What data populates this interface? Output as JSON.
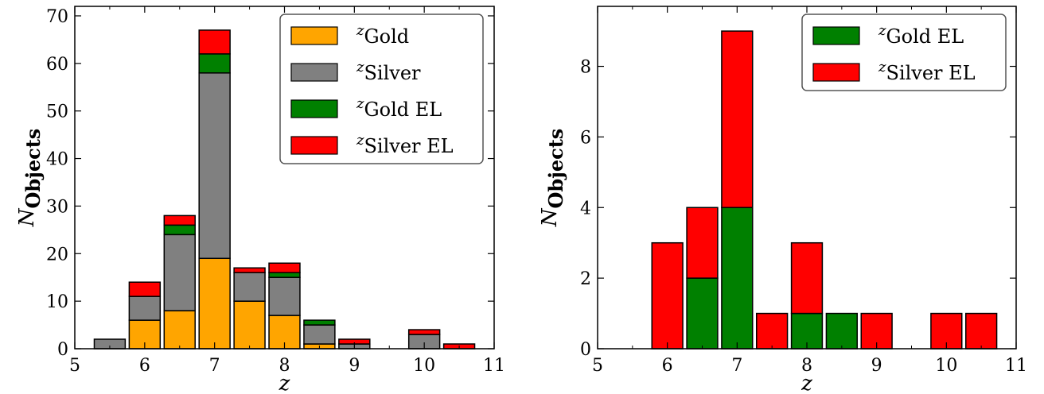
{
  "chart_data": [
    {
      "type": "bar",
      "stacked": true,
      "xlabel": "z",
      "ylabel": "N_Objects",
      "xlim": [
        5,
        11
      ],
      "ylim": [
        0,
        72
      ],
      "xticks": [
        5,
        6,
        7,
        8,
        9,
        10,
        11
      ],
      "yticks": [
        0,
        10,
        20,
        30,
        40,
        50,
        60,
        70
      ],
      "bin_edges": [
        5.25,
        5.75,
        6.25,
        6.75,
        7.25,
        7.75,
        8.25,
        8.75,
        9.25,
        9.75,
        10.25,
        10.75
      ],
      "legend_position": "top-right",
      "series": [
        {
          "name": "Gold",
          "legend_prefix": "z",
          "color": "#ffa500",
          "values": [
            0,
            6,
            8,
            19,
            10,
            7,
            1,
            0,
            0,
            0,
            0
          ]
        },
        {
          "name": "Silver",
          "legend_prefix": "z",
          "color": "#808080",
          "values": [
            2,
            5,
            16,
            39,
            6,
            8,
            4,
            1,
            0,
            3,
            0
          ]
        },
        {
          "name": "Gold EL",
          "legend_prefix": "z",
          "color": "#008000",
          "values": [
            0,
            0,
            2,
            4,
            0,
            1,
            1,
            0,
            0,
            0,
            0
          ]
        },
        {
          "name": "Silver EL",
          "legend_prefix": "z",
          "color": "#ff0000",
          "values": [
            0,
            3,
            2,
            5,
            1,
            2,
            0,
            1,
            0,
            1,
            1
          ]
        }
      ]
    },
    {
      "type": "bar",
      "stacked": true,
      "xlabel": "z",
      "ylabel": "N_Objects",
      "xlim": [
        5,
        11
      ],
      "ylim": [
        0,
        9.7
      ],
      "xticks": [
        5,
        6,
        7,
        8,
        9,
        10,
        11
      ],
      "yticks": [
        0,
        2,
        4,
        6,
        8
      ],
      "bin_edges": [
        5.25,
        5.75,
        6.25,
        6.75,
        7.25,
        7.75,
        8.25,
        8.75,
        9.25,
        9.75,
        10.25,
        10.75
      ],
      "legend_position": "top-right",
      "series": [
        {
          "name": "Gold EL",
          "legend_prefix": "z",
          "color": "#008000",
          "values": [
            0,
            0,
            2,
            4,
            0,
            1,
            1,
            0,
            0,
            0,
            0
          ]
        },
        {
          "name": "Silver EL",
          "legend_prefix": "z",
          "color": "#ff0000",
          "values": [
            0,
            3,
            2,
            5,
            1,
            2,
            0,
            1,
            0,
            1,
            1
          ]
        }
      ]
    }
  ]
}
